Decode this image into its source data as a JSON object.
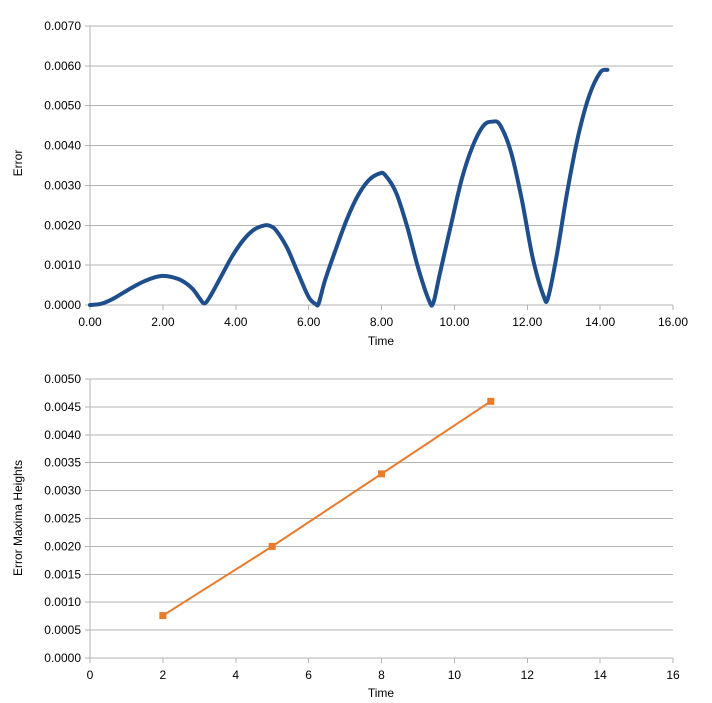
{
  "chart_data": [
    {
      "type": "line",
      "title": "",
      "xlabel": "Time",
      "ylabel": "Error",
      "xlim": [
        0,
        16
      ],
      "ylim": [
        0,
        0.007
      ],
      "xticks": [
        "0.00",
        "2.00",
        "4.00",
        "6.00",
        "8.00",
        "10.00",
        "12.00",
        "14.00",
        "16.00"
      ],
      "yticks": [
        "0.0000",
        "0.0010",
        "0.0020",
        "0.0030",
        "0.0040",
        "0.0050",
        "0.0060",
        "0.0070"
      ],
      "grid": "horizontal",
      "legend": "none",
      "series": [
        {
          "color": "#1f4e8c",
          "x": [
            0.0,
            0.3,
            0.6,
            0.9,
            1.2,
            1.5,
            1.8,
            2.0,
            2.2,
            2.5,
            2.8,
            3.0,
            3.14,
            3.3,
            3.6,
            3.9,
            4.2,
            4.5,
            4.8,
            4.95,
            5.1,
            5.4,
            5.7,
            6.0,
            6.2,
            6.28,
            6.45,
            6.75,
            7.05,
            7.35,
            7.65,
            7.95,
            8.1,
            8.4,
            8.7,
            9.0,
            9.3,
            9.42,
            9.6,
            9.9,
            10.2,
            10.5,
            10.8,
            11.05,
            11.25,
            11.55,
            11.85,
            12.15,
            12.45,
            12.57,
            12.8,
            13.1,
            13.4,
            13.7,
            14.0,
            14.2
          ],
          "y": [
            0.0,
            3e-05,
            0.00014,
            0.0003,
            0.00046,
            0.0006,
            0.0007,
            0.00073,
            0.00071,
            0.00062,
            0.00042,
            0.00018,
            4e-05,
            0.00022,
            0.00072,
            0.00122,
            0.00162,
            0.00189,
            0.002,
            0.00198,
            0.00188,
            0.00145,
            0.00082,
            0.0002,
            2e-05,
            5e-05,
            0.00062,
            0.00141,
            0.00215,
            0.00274,
            0.00313,
            0.0033,
            0.00326,
            0.00282,
            0.00198,
            0.00095,
            0.00012,
            5e-05,
            0.00078,
            0.00198,
            0.00315,
            0.00398,
            0.0045,
            0.0046,
            0.00452,
            0.00385,
            0.00265,
            0.00118,
            0.00022,
            0.00018,
            0.0012,
            0.00285,
            0.00425,
            0.00525,
            0.00583,
            0.0059
          ]
        }
      ]
    },
    {
      "type": "line",
      "title": "",
      "xlabel": "Time",
      "ylabel": "Error Maxima Heights",
      "xlim": [
        0,
        16
      ],
      "ylim": [
        0,
        0.005
      ],
      "xticks": [
        "0",
        "2",
        "4",
        "6",
        "8",
        "10",
        "12",
        "14",
        "16"
      ],
      "yticks": [
        "0.0000",
        "0.0005",
        "0.0010",
        "0.0015",
        "0.0020",
        "0.0025",
        "0.0030",
        "0.0035",
        "0.0040",
        "0.0045",
        "0.0050"
      ],
      "grid": "horizontal",
      "legend": "none",
      "series": [
        {
          "color": "#e97b2c",
          "marker": "square",
          "x": [
            2,
            5,
            8,
            11
          ],
          "y": [
            0.00076,
            0.002,
            0.0033,
            0.0046
          ]
        }
      ]
    }
  ]
}
